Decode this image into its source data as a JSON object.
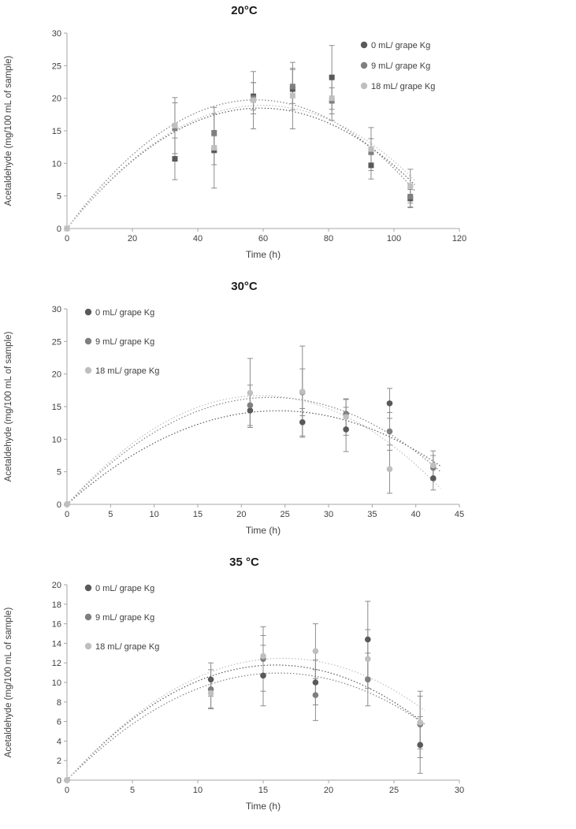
{
  "page": {
    "background": "#ffffff"
  },
  "styles": {
    "axis_color": "#a6a6a6",
    "tick_text_color": "#404040",
    "error_bar_color": "#8c8c8c",
    "series_colors": {
      "0mL": "#595959",
      "9mL": "#7f7f7f",
      "18mL": "#bfbfbf"
    }
  },
  "chart_data": [
    {
      "type": "scatter",
      "title": "20°C",
      "xlabel": "Time (h)",
      "ylabel": "Acetaldehyde (mg/100 mL of sample)",
      "xlim": [
        0,
        120
      ],
      "xstep": 20,
      "ylim": [
        0,
        30
      ],
      "ystep": 5,
      "grid": false,
      "legend_position": "top-right",
      "marker": "square",
      "trendline": "quadratic dotted fit through origin",
      "x": [
        0,
        33,
        45,
        57,
        69,
        81,
        93,
        105
      ],
      "series": [
        {
          "name": "0 mL/ grape Kg",
          "color": "#595959",
          "values": [
            0,
            10.7,
            12.0,
            20.3,
            21.4,
            23.2,
            9.7,
            4.6
          ],
          "errors": [
            0,
            3.2,
            2.2,
            2.1,
            3.2,
            4.9,
            2.1,
            1.4
          ]
        },
        {
          "name": "9 mL/ grape Kg",
          "color": "#7f7f7f",
          "values": [
            0,
            15.4,
            14.7,
            20.0,
            21.8,
            19.6,
            11.7,
            4.9
          ],
          "errors": [
            0,
            3.9,
            2.9,
            2.4,
            2.6,
            2.0,
            2.1,
            1.6
          ]
        },
        {
          "name": "18 mL/ grape Kg",
          "color": "#bfbfbf",
          "values": [
            0,
            15.8,
            12.4,
            19.7,
            20.4,
            20.0,
            12.2,
            6.5
          ],
          "errors": [
            0,
            4.3,
            6.2,
            4.4,
            5.1,
            3.4,
            3.3,
            2.6
          ]
        }
      ]
    },
    {
      "type": "scatter",
      "title": "30°C",
      "xlabel": "Time (h)",
      "ylabel": "Acetaldehyde (mg/100 mL of sample)",
      "xlim": [
        0,
        45
      ],
      "xstep": 5,
      "ylim": [
        0,
        30
      ],
      "ystep": 5,
      "grid": false,
      "legend_position": "top-left",
      "marker": "circle",
      "trendline": "quadratic dotted fit through origin",
      "x": [
        0,
        21,
        27,
        32,
        37,
        42
      ],
      "series": [
        {
          "name": "0 mL/ grape Kg",
          "color": "#595959",
          "values": [
            0,
            14.4,
            12.6,
            11.5,
            15.5,
            4.0
          ],
          "errors": [
            0,
            2.6,
            2.1,
            3.4,
            2.3,
            1.8
          ]
        },
        {
          "name": "9 mL/ grape Kg",
          "color": "#7f7f7f",
          "values": [
            0,
            15.2,
            17.2,
            13.9,
            11.2,
            5.6
          ],
          "errors": [
            0,
            3.1,
            3.6,
            2.2,
            2.9,
            1.9
          ]
        },
        {
          "name": "18 mL/ grape Kg",
          "color": "#bfbfbf",
          "values": [
            0,
            17.1,
            17.3,
            13.4,
            5.4,
            6.0
          ],
          "errors": [
            0,
            5.3,
            7.0,
            2.8,
            3.7,
            2.2
          ]
        }
      ]
    },
    {
      "type": "scatter",
      "title": "35 °C",
      "xlabel": "Time (h)",
      "ylabel": "Acetaldehyde (mg/100 mL of sample)",
      "xlim": [
        0,
        30
      ],
      "xstep": 5,
      "ylim": [
        0,
        20
      ],
      "ystep": 2,
      "grid": false,
      "legend_position": "top-left",
      "marker": "circle",
      "trendline": "quadratic dotted fit through origin",
      "x": [
        0,
        11,
        15,
        19,
        23,
        27
      ],
      "series": [
        {
          "name": "0 mL/ grape Kg",
          "color": "#595959",
          "values": [
            0,
            10.3,
            10.7,
            10.0,
            14.4,
            3.6
          ],
          "errors": [
            0,
            1.7,
            3.1,
            2.3,
            3.9,
            2.9
          ]
        },
        {
          "name": "9 mL/ grape Kg",
          "color": "#7f7f7f",
          "values": [
            0,
            9.3,
            12.4,
            8.7,
            10.3,
            5.7
          ],
          "errors": [
            0,
            2.0,
            3.3,
            2.6,
            2.7,
            3.4
          ]
        },
        {
          "name": "18 mL/ grape Kg",
          "color": "#bfbfbf",
          "values": [
            0,
            8.9,
            12.7,
            13.2,
            12.4,
            5.9
          ],
          "errors": [
            0,
            1.5,
            2.1,
            2.8,
            3.0,
            2.7
          ]
        }
      ]
    }
  ]
}
